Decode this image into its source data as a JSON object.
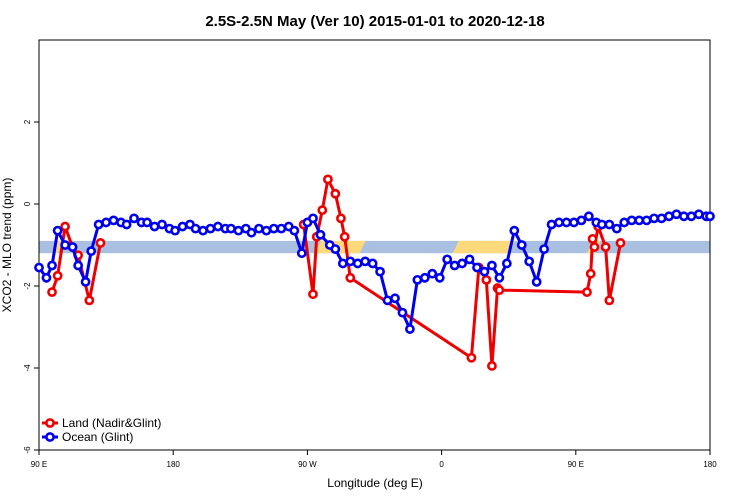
{
  "chart_data": {
    "type": "line",
    "title": "2.5S-2.5N May (Ver 10)   2015-01-01 to 2020-12-18",
    "xlabel": "Longitude (deg E)",
    "ylabel": "XCO2 - MLO trend (ppm)",
    "xlim": [
      90,
      450
    ],
    "ylim": [
      -6,
      4
    ],
    "x_ticks": [
      {
        "value": 90,
        "label": "90 E"
      },
      {
        "value": 162,
        "label": "180"
      },
      {
        "value": 234,
        "label": "90 W"
      },
      {
        "value": 306,
        "label": "0"
      },
      {
        "value": 378,
        "label": "90 E"
      },
      {
        "value": 450,
        "label": "180"
      }
    ],
    "y_ticks": [
      -6,
      -4,
      -2,
      0,
      2
    ],
    "grid": false,
    "legend_position": "bottom-left",
    "band": {
      "y_from": -1.2,
      "y_to": -0.9,
      "base_color": "#a9c0e0",
      "land_color": "#fcd97a",
      "land_segments": [
        [
          97,
          100
        ],
        [
          238,
          262
        ],
        [
          312,
          342
        ],
        [
          384,
          388
        ]
      ]
    },
    "series": [
      {
        "name": "Land (Nadir&Glint)",
        "color": "#ee0000",
        "x": [
          97,
          100,
          104,
          108,
          111,
          117,
          123,
          127,
          232,
          237,
          239,
          242,
          245,
          249,
          252,
          254,
          257,
          322,
          326,
          330,
          333,
          336,
          337,
          384,
          386,
          387,
          388,
          390,
          394,
          396,
          402,
          404
        ],
        "y": [
          -2.15,
          -1.75,
          -0.55,
          -1.05,
          -1.25,
          -2.35,
          -0.95,
          null,
          -0.5,
          -2.2,
          -0.8,
          -0.15,
          0.6,
          0.25,
          -0.35,
          -0.8,
          -1.8,
          -3.75,
          -1.55,
          -1.85,
          -3.95,
          -2.05,
          -2.1,
          -2.15,
          -1.7,
          -0.85,
          -1.05,
          -0.55,
          -1.05,
          -2.35,
          -0.95,
          null
        ]
      },
      {
        "name": "Ocean (Glint)",
        "color": "#0000ee",
        "x": [
          90,
          94,
          97,
          100,
          104,
          108,
          111,
          115,
          118,
          122,
          126,
          130,
          134,
          137,
          141,
          145,
          148,
          152,
          156,
          160,
          163,
          167,
          171,
          174,
          178,
          182,
          186,
          190,
          193,
          197,
          201,
          204,
          208,
          212,
          216,
          220,
          224,
          227,
          231,
          234,
          237,
          241,
          246,
          249,
          253,
          257,
          261,
          265,
          269,
          273,
          277,
          281,
          285,
          289,
          293,
          297,
          301,
          305,
          309,
          313,
          317,
          321,
          325,
          329,
          333,
          337,
          341,
          345,
          349,
          353,
          357,
          361,
          365,
          369,
          373,
          377,
          381,
          385,
          389,
          392,
          396,
          400,
          404,
          408,
          412,
          416,
          420,
          424,
          428,
          432,
          436,
          440,
          444,
          448,
          450
        ],
        "y": [
          -1.55,
          -1.8,
          -1.5,
          -0.65,
          -1.0,
          -1.05,
          -1.5,
          -1.9,
          -1.15,
          -0.5,
          -0.45,
          -0.4,
          -0.45,
          -0.5,
          -0.35,
          -0.45,
          -0.45,
          -0.55,
          -0.5,
          -0.6,
          -0.65,
          -0.55,
          -0.5,
          -0.6,
          -0.65,
          -0.6,
          -0.55,
          -0.6,
          -0.6,
          -0.65,
          -0.6,
          -0.7,
          -0.6,
          -0.65,
          -0.6,
          -0.6,
          -0.55,
          -0.65,
          -1.2,
          -0.45,
          -0.35,
          -0.75,
          -1.0,
          -1.1,
          -1.45,
          -1.4,
          -1.45,
          -1.4,
          -1.45,
          -1.65,
          -2.35,
          -2.3,
          -2.65,
          -3.05,
          -1.85,
          -1.8,
          -1.7,
          -1.8,
          -1.35,
          -1.5,
          -1.45,
          -1.35,
          -1.55,
          -1.65,
          -1.5,
          -1.8,
          -1.45,
          -0.65,
          -1.0,
          -1.4,
          -1.9,
          -1.1,
          -0.5,
          -0.45,
          -0.45,
          -0.45,
          -0.4,
          -0.3,
          -0.45,
          -0.5,
          -0.5,
          -0.6,
          -0.45,
          -0.4,
          -0.4,
          -0.4,
          -0.35,
          -0.35,
          -0.3,
          -0.25,
          -0.3,
          -0.3,
          -0.25,
          -0.3,
          -0.3
        ]
      }
    ]
  }
}
